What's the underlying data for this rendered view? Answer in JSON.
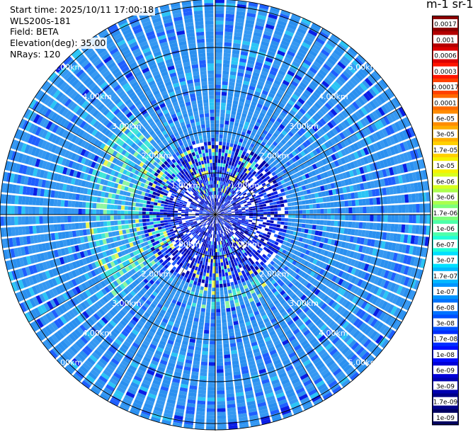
{
  "info": {
    "start_time": "Start time: 2025/10/11 17:00:18",
    "instrument": "WLS200s-181",
    "field": "Field: BETA",
    "elevation": "Elevation(deg): 35.00",
    "nrays": "NRays: 120"
  },
  "colorbar": {
    "title": "m-1 sr-1",
    "tick_labels": [
      "0.0017",
      "0.001",
      "0.0006",
      "0.0003",
      "0.00017",
      "0.0001",
      "6e-05",
      "3e-05",
      "1.7e-05",
      "1e-05",
      "6e-06",
      "3e-06",
      "1.7e-06",
      "1e-06",
      "6e-07",
      "3e-07",
      "1.7e-07",
      "1e-07",
      "6e-08",
      "3e-08",
      "1.7e-08",
      "1e-08",
      "6e-09",
      "3e-09",
      "1.7e-09",
      "1e-09"
    ],
    "colors": [
      "#8b0000",
      "#b40000",
      "#dc0000",
      "#ff1500",
      "#ff4000",
      "#ff6a00",
      "#ff8c00",
      "#ffae00",
      "#ffd000",
      "#f5f200",
      "#d8ff1e",
      "#aaff4d",
      "#7dff7a",
      "#4dffaa",
      "#20ffd8",
      "#00e0ff",
      "#00b8ff",
      "#0095ff",
      "#0072ff",
      "#004fff",
      "#002dff",
      "#000cff",
      "#0000d8",
      "#0000b0",
      "#000088",
      "#000060"
    ]
  },
  "chart_data": {
    "type": "heatmap",
    "projection": "polar PPI scan",
    "field": "BETA",
    "elevation_deg": 35.0,
    "n_rays": 120,
    "max_range_km": 5.1,
    "range_rings_km": [
      1.0,
      2.0,
      3.0,
      4.0,
      5.0
    ],
    "ring_labels": [
      "1.00km",
      "2.00km",
      "3.00km",
      "4.00km",
      "5.00km"
    ],
    "colorscale": "jet, log-scaled from 1e-09 to 0.0017",
    "dominant_values": {
      "far_range": "3e-08 to 6e-08",
      "near_range": "1e-09 to 1e-08",
      "patches": "1.7e-07 to 1.7e-05"
    }
  }
}
